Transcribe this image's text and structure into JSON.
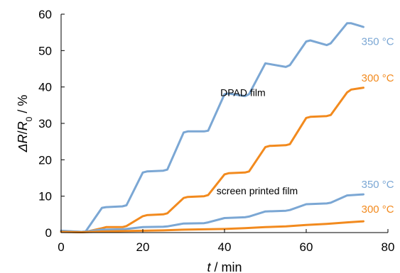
{
  "chart_data": {
    "type": "line",
    "xlabel": {
      "var": "t",
      "unit": " / min"
    },
    "ylabel": {
      "delta": "Δ",
      "r": "R",
      "slash": "/",
      "r0": "R",
      "sub0": "0",
      "unit": " / %"
    },
    "xlim": [
      0,
      80
    ],
    "ylim": [
      0,
      60
    ],
    "x_ticks": [
      0,
      20,
      40,
      60,
      80
    ],
    "y_ticks": [
      0,
      10,
      20,
      30,
      40,
      50,
      60
    ],
    "grid": false,
    "annotations": [
      {
        "text": "DPAD film",
        "x": 44.5,
        "y": 37.5
      },
      {
        "text": "screen printed film",
        "x": 48,
        "y": 10.5
      }
    ],
    "series": [
      {
        "name": "350 °C",
        "group": "DPAD film",
        "color": "#7ba7d4",
        "label_at": [
          77.5,
          51.5
        ],
        "x": [
          0,
          5,
          6,
          10,
          11,
          15,
          16,
          20,
          21,
          25,
          26,
          30,
          31,
          35,
          36,
          40,
          41,
          45,
          46,
          50,
          51,
          55,
          56,
          60,
          61,
          65,
          66,
          70,
          71,
          74
        ],
        "y": [
          0.5,
          0.2,
          0.3,
          6.8,
          7.0,
          7.2,
          7.5,
          16.5,
          16.8,
          17.0,
          17.3,
          27.5,
          27.8,
          27.8,
          28.0,
          38.0,
          38.2,
          37.5,
          38.0,
          46.5,
          46.3,
          45.5,
          46.0,
          52.5,
          52.8,
          51.5,
          52.0,
          57.5,
          57.5,
          56.5
        ]
      },
      {
        "name": "300 °C",
        "group": "DPAD film",
        "color": "#f28a1e",
        "label_at": [
          77.5,
          41.5
        ],
        "x": [
          0,
          5,
          6,
          10,
          11,
          15,
          16,
          20,
          21,
          25,
          26,
          30,
          31,
          35,
          36,
          40,
          41,
          45,
          46,
          50,
          51,
          55,
          56,
          60,
          61,
          65,
          66,
          70,
          71,
          74
        ],
        "y": [
          0.3,
          0.1,
          0.2,
          1.2,
          1.5,
          1.5,
          1.8,
          4.5,
          4.8,
          5.0,
          5.3,
          9.5,
          9.8,
          10.0,
          10.3,
          16.0,
          16.3,
          16.5,
          16.8,
          23.5,
          23.8,
          24.0,
          24.3,
          31.5,
          31.8,
          32.0,
          32.3,
          38.5,
          39.3,
          39.8
        ]
      },
      {
        "name": "350 °C",
        "group": "screen printed film",
        "color": "#7ba7d4",
        "label_at": [
          77.5,
          12.3
        ],
        "x": [
          0,
          5,
          6,
          10,
          15,
          16,
          20,
          25,
          26,
          30,
          35,
          36,
          40,
          45,
          46,
          50,
          55,
          56,
          60,
          65,
          66,
          70,
          74
        ],
        "y": [
          0.4,
          0.2,
          0.3,
          0.8,
          0.9,
          1.0,
          1.5,
          1.6,
          1.7,
          2.5,
          2.6,
          2.8,
          4.0,
          4.2,
          4.4,
          5.8,
          6.0,
          6.2,
          7.8,
          8.0,
          8.2,
          10.2,
          10.5
        ]
      },
      {
        "name": "300 °C",
        "group": "screen printed film",
        "color": "#f28a1e",
        "label_at": [
          77.5,
          5.5
        ],
        "x": [
          0,
          5,
          10,
          15,
          20,
          25,
          30,
          35,
          40,
          45,
          50,
          55,
          60,
          65,
          70,
          74
        ],
        "y": [
          0.2,
          0.1,
          0.3,
          0.4,
          0.5,
          0.6,
          0.8,
          0.9,
          1.0,
          1.2,
          1.5,
          1.7,
          2.1,
          2.4,
          2.8,
          3.1
        ]
      }
    ]
  }
}
